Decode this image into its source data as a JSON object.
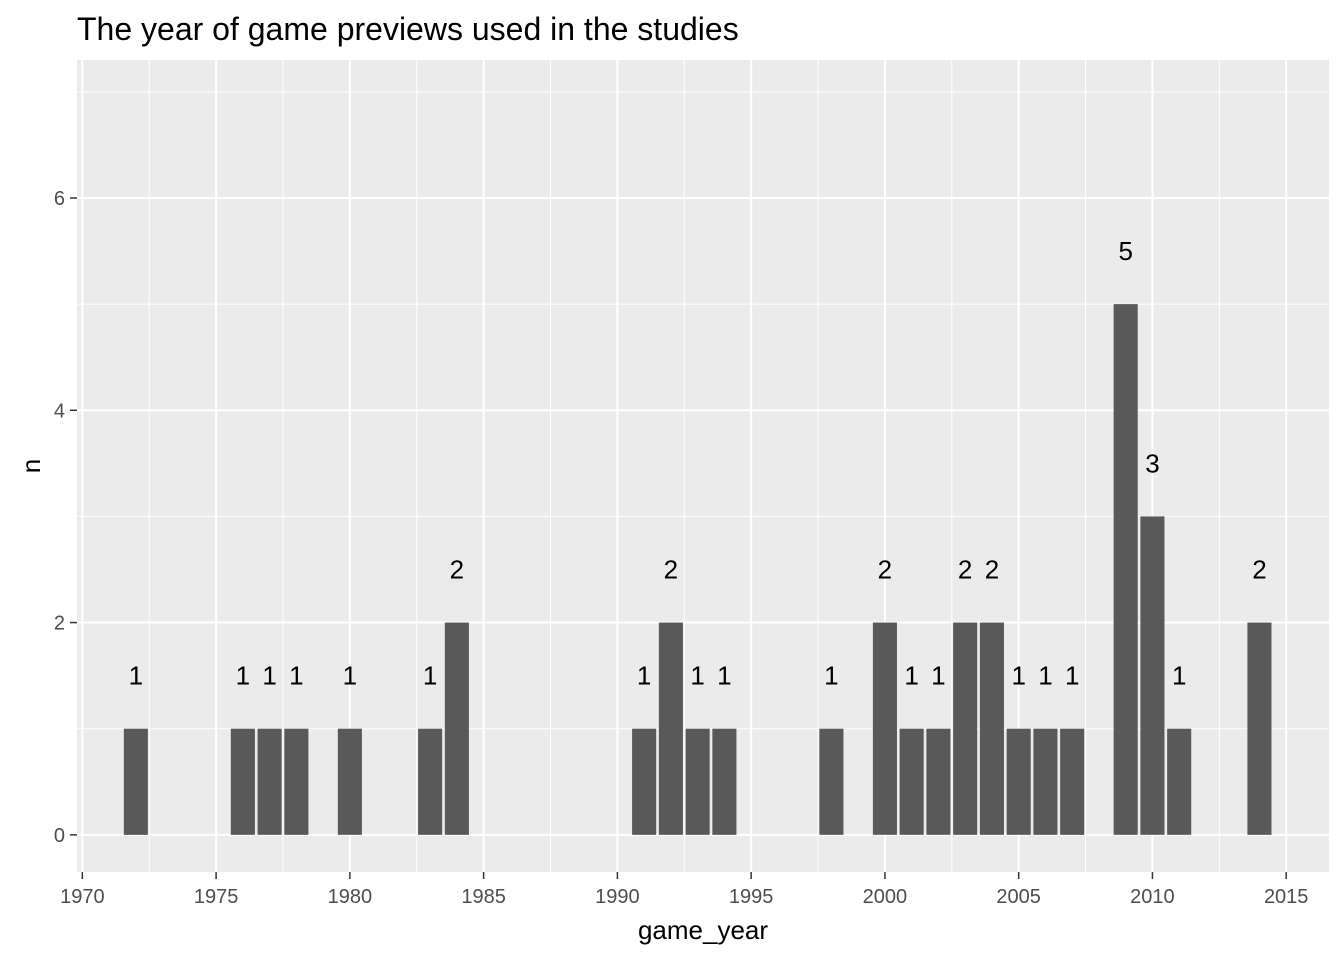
{
  "chart_data": {
    "type": "bar",
    "title": "The year of game previews used in the studies",
    "xlabel": "game_year",
    "ylabel": "n",
    "x": [
      1972,
      1976,
      1977,
      1978,
      1980,
      1983,
      1984,
      1991,
      1992,
      1993,
      1994,
      1998,
      2000,
      2001,
      2002,
      2003,
      2004,
      2005,
      2006,
      2007,
      2009,
      2010,
      2011,
      2014
    ],
    "values": [
      1,
      1,
      1,
      1,
      1,
      1,
      2,
      1,
      2,
      1,
      1,
      1,
      2,
      1,
      1,
      2,
      2,
      1,
      1,
      1,
      5,
      3,
      1,
      2
    ],
    "xlim": [
      1969.8,
      2016.6
    ],
    "ylim": [
      -0.35,
      7.3
    ],
    "x_ticks": [
      1970,
      1975,
      1980,
      1985,
      1990,
      1995,
      2000,
      2005,
      2010,
      2015
    ],
    "y_ticks": [
      0,
      2,
      4,
      6
    ],
    "grid": true,
    "colors": {
      "panel_background": "#ebebeb",
      "grid": "#ffffff",
      "bar": "#595959",
      "tick_label": "#4d4d4d",
      "tick_mark": "#333333",
      "text": "#000000"
    }
  }
}
